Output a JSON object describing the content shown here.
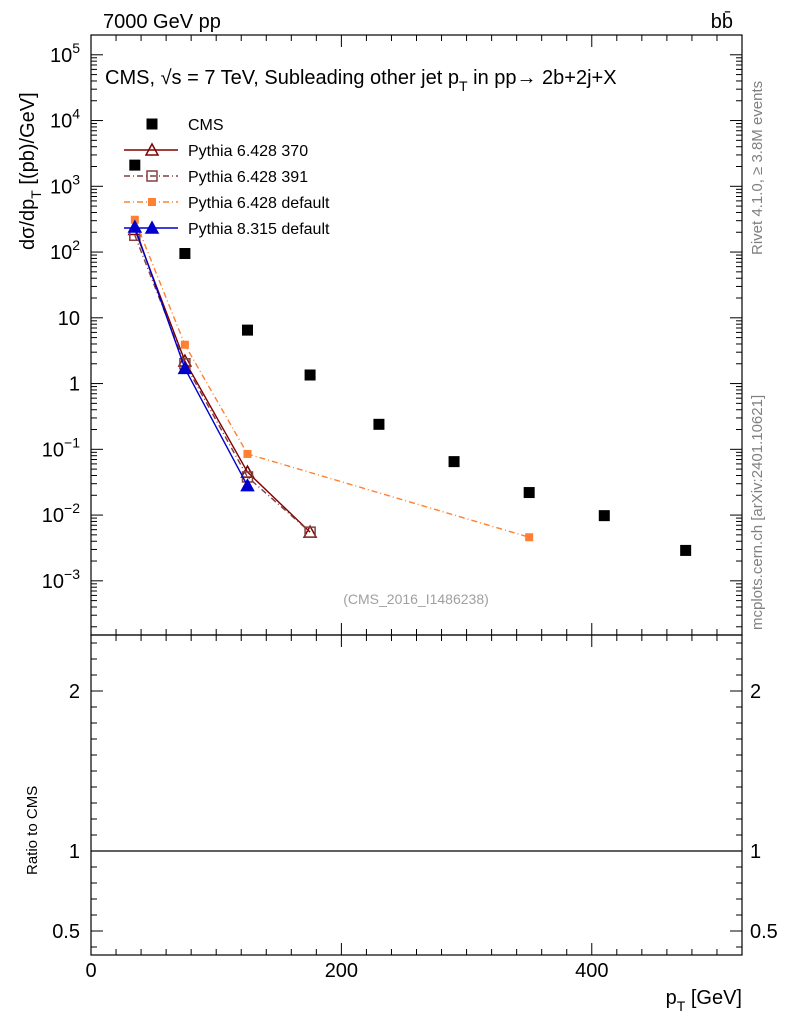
{
  "header": {
    "energy_label": "7000 GeV pp",
    "process_label": "bb̄"
  },
  "side_labels": {
    "rivet": "Rivet 4.1.0, ≥ 3.8M events",
    "mcplots": "mcplots.cern.ch [arXiv:2401.10621]"
  },
  "chart_data": {
    "type": "scatter",
    "title_parts": {
      "prefix": "CMS, ",
      "sqrt": "√s",
      "mid": " = 7 TeV, Subleading other jet p",
      "sub": "T",
      "suffix": " in pp→  2b+2j+X"
    },
    "watermark": "(CMS_2016_I1486238)",
    "xlabel": "p",
    "xlabel_sub": "T",
    "xlabel_unit": " [GeV]",
    "ylabel": "dσ/dp",
    "ylabel_sub": "T",
    "ylabel_unit": "  [(pb)/GeV]",
    "ratio_ylabel": "Ratio to CMS",
    "xlim": [
      0,
      520
    ],
    "ylim_log": [
      0.00015,
      200000
    ],
    "ratio_ylim": [
      0.35,
      2.35
    ],
    "x_ticks": [
      {
        "value": 0,
        "label": "0"
      },
      {
        "value": 200,
        "label": "200"
      },
      {
        "value": 400,
        "label": "400"
      }
    ],
    "y_ticks": [
      {
        "value": 0.001,
        "base": "10",
        "exp": "−3"
      },
      {
        "value": 0.01,
        "base": "10",
        "exp": "−2"
      },
      {
        "value": 0.1,
        "base": "10",
        "exp": "−1"
      },
      {
        "value": 1,
        "base": "1",
        "exp": ""
      },
      {
        "value": 10,
        "base": "10",
        "exp": ""
      },
      {
        "value": 100,
        "base": "10",
        "exp": "2"
      },
      {
        "value": 1000,
        "base": "10",
        "exp": "3"
      },
      {
        "value": 10000,
        "base": "10",
        "exp": "4"
      },
      {
        "value": 100000,
        "base": "10",
        "exp": "5"
      }
    ],
    "ratio_ticks": [
      {
        "value": 0.5,
        "label": "0.5"
      },
      {
        "value": 1,
        "label": "1"
      },
      {
        "value": 2,
        "label": "2"
      }
    ],
    "series": [
      {
        "name": "CMS",
        "color": "#000000",
        "marker": "square-filled",
        "line": "none",
        "x": [
          35,
          75,
          125,
          175,
          230,
          290,
          350,
          410,
          475
        ],
        "y": [
          2100,
          95,
          6.5,
          1.35,
          0.24,
          0.065,
          0.022,
          0.0098,
          0.0029
        ]
      },
      {
        "name": "Pythia 6.428 370",
        "color": "#800000",
        "marker": "triangle-open",
        "line": "solid",
        "x": [
          35,
          75,
          125,
          175
        ],
        "y": [
          220,
          2.2,
          0.045,
          0.0055
        ]
      },
      {
        "name": "Pythia 6.428 391",
        "color": "#804040",
        "marker": "square-open",
        "line": "dashdot",
        "x": [
          35,
          75,
          125,
          175
        ],
        "y": [
          180,
          2.0,
          0.038,
          0.0055
        ]
      },
      {
        "name": "Pythia 6.428 default",
        "color": "#ff8030",
        "marker": "square-filled",
        "line": "dashdot",
        "x": [
          35,
          75,
          125,
          350
        ],
        "y": [
          310,
          3.9,
          0.085,
          0.0046
        ]
      },
      {
        "name": "Pythia 8.315 default",
        "color": "#0000cc",
        "marker": "triangle-filled",
        "line": "solid",
        "x": [
          35,
          75,
          125
        ],
        "y": [
          240,
          1.7,
          0.028
        ]
      }
    ]
  }
}
